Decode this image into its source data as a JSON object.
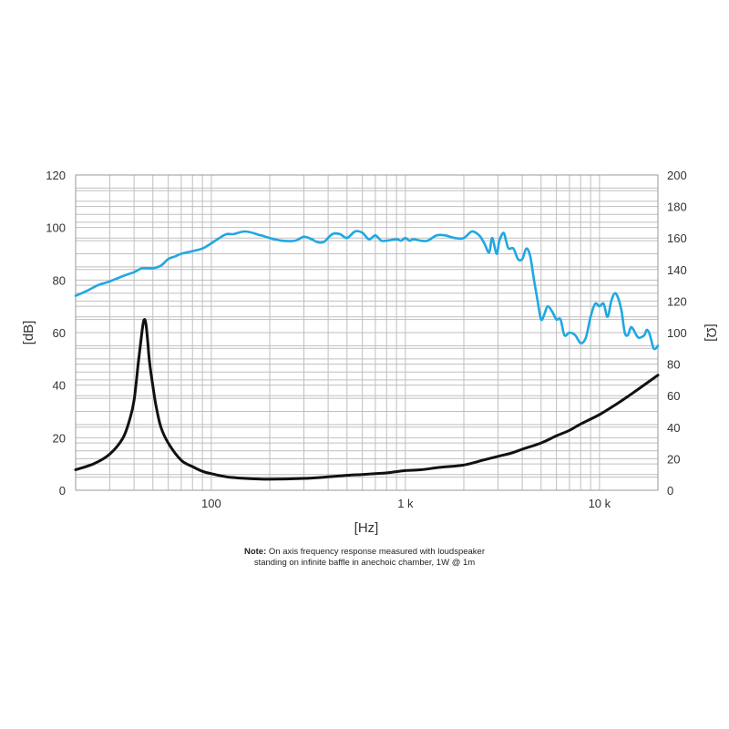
{
  "chart_data": {
    "type": "line",
    "xscale": "log",
    "xlim": [
      20,
      20000
    ],
    "xlabel": "[Hz]",
    "ylabel_left": "[dB]",
    "ylabel_right": "[Ω]",
    "ylim_left": [
      0,
      120
    ],
    "ylim_right": [
      0,
      200
    ],
    "x_ticks": [
      {
        "value": 100,
        "label": "100"
      },
      {
        "value": 1000,
        "label": "1 k"
      },
      {
        "value": 10000,
        "label": "10 k"
      }
    ],
    "y_ticks_left": [
      "0",
      "20",
      "40",
      "60",
      "80",
      "100",
      "120"
    ],
    "y_ticks_right": [
      "0",
      "20",
      "40",
      "60",
      "80",
      "100",
      "120",
      "140",
      "160",
      "180",
      "200"
    ],
    "grid": true,
    "series": [
      {
        "axis": "left",
        "color": "#1fa8e1",
        "points": [
          [
            20,
            74
          ],
          [
            23,
            76
          ],
          [
            26,
            78
          ],
          [
            30,
            79.5
          ],
          [
            35,
            81.5
          ],
          [
            40,
            83
          ],
          [
            44,
            84.5
          ],
          [
            50,
            84.5
          ],
          [
            55,
            85.5
          ],
          [
            60,
            88
          ],
          [
            65,
            89
          ],
          [
            70,
            90
          ],
          [
            80,
            91
          ],
          [
            90,
            92
          ],
          [
            100,
            94
          ],
          [
            110,
            96
          ],
          [
            120,
            97.5
          ],
          [
            130,
            97.5
          ],
          [
            150,
            98.5
          ],
          [
            180,
            97
          ],
          [
            200,
            96
          ],
          [
            230,
            95
          ],
          [
            270,
            95
          ],
          [
            300,
            96.5
          ],
          [
            330,
            95.5
          ],
          [
            350,
            94.5
          ],
          [
            380,
            94.5
          ],
          [
            420,
            97.5
          ],
          [
            460,
            97.5
          ],
          [
            500,
            96
          ],
          [
            550,
            98.5
          ],
          [
            600,
            98
          ],
          [
            650,
            95.5
          ],
          [
            700,
            97
          ],
          [
            750,
            95
          ],
          [
            800,
            95
          ],
          [
            900,
            95.5
          ],
          [
            950,
            95
          ],
          [
            1000,
            96
          ],
          [
            1050,
            95
          ],
          [
            1100,
            95.5
          ],
          [
            1200,
            95
          ],
          [
            1300,
            95
          ],
          [
            1450,
            97
          ],
          [
            1600,
            97
          ],
          [
            1800,
            96
          ],
          [
            2000,
            96
          ],
          [
            2200,
            98.5
          ],
          [
            2400,
            97
          ],
          [
            2550,
            94
          ],
          [
            2700,
            90.5
          ],
          [
            2800,
            96
          ],
          [
            2950,
            90
          ],
          [
            3050,
            95
          ],
          [
            3200,
            98
          ],
          [
            3300,
            95
          ],
          [
            3400,
            92
          ],
          [
            3600,
            92
          ],
          [
            3800,
            88
          ],
          [
            4000,
            88
          ],
          [
            4200,
            92
          ],
          [
            4400,
            89
          ],
          [
            4600,
            80
          ],
          [
            4800,
            72
          ],
          [
            5000,
            65
          ],
          [
            5200,
            67
          ],
          [
            5400,
            70
          ],
          [
            5700,
            68
          ],
          [
            6000,
            65
          ],
          [
            6300,
            65
          ],
          [
            6600,
            59
          ],
          [
            7000,
            60
          ],
          [
            7500,
            59
          ],
          [
            8000,
            56
          ],
          [
            8500,
            58
          ],
          [
            9000,
            66
          ],
          [
            9500,
            71
          ],
          [
            10000,
            70
          ],
          [
            10500,
            71
          ],
          [
            11000,
            66
          ],
          [
            11500,
            72
          ],
          [
            12000,
            75
          ],
          [
            12500,
            73
          ],
          [
            13000,
            68
          ],
          [
            13500,
            60
          ],
          [
            14000,
            59
          ],
          [
            14500,
            62
          ],
          [
            15000,
            61
          ],
          [
            15500,
            59
          ],
          [
            16000,
            58
          ],
          [
            17000,
            59
          ],
          [
            17500,
            61
          ],
          [
            18000,
            60
          ],
          [
            18500,
            57
          ],
          [
            19000,
            54
          ],
          [
            19500,
            54
          ],
          [
            20000,
            55
          ]
        ]
      },
      {
        "axis": "right",
        "color": "#111111",
        "points": [
          [
            20,
            13
          ],
          [
            25,
            17
          ],
          [
            30,
            23
          ],
          [
            35,
            33
          ],
          [
            38,
            45
          ],
          [
            40,
            57
          ],
          [
            42,
            80
          ],
          [
            44,
            101
          ],
          [
            45,
            108
          ],
          [
            46,
            106
          ],
          [
            47,
            95
          ],
          [
            48,
            82
          ],
          [
            50,
            66
          ],
          [
            52,
            53
          ],
          [
            55,
            40
          ],
          [
            60,
            30
          ],
          [
            70,
            19
          ],
          [
            80,
            15
          ],
          [
            90,
            12
          ],
          [
            100,
            10.5
          ],
          [
            120,
            8.5
          ],
          [
            150,
            7.5
          ],
          [
            200,
            7
          ],
          [
            300,
            7.5
          ],
          [
            400,
            8.5
          ],
          [
            500,
            9.5
          ],
          [
            600,
            10
          ],
          [
            700,
            10.5
          ],
          [
            800,
            11
          ],
          [
            1000,
            12.5
          ],
          [
            1200,
            13
          ],
          [
            1500,
            14.5
          ],
          [
            2000,
            16
          ],
          [
            2500,
            19
          ],
          [
            3000,
            21.5
          ],
          [
            3500,
            23.5
          ],
          [
            4000,
            26
          ],
          [
            5000,
            30
          ],
          [
            6000,
            34.5
          ],
          [
            7000,
            38
          ],
          [
            8000,
            42
          ],
          [
            10000,
            48
          ],
          [
            12000,
            54
          ],
          [
            14000,
            59.5
          ],
          [
            16000,
            64.5
          ],
          [
            18000,
            69
          ],
          [
            20000,
            73
          ]
        ]
      }
    ]
  },
  "note": {
    "bold": "Note:",
    "line1": " On axis frequency response measured with loudspeaker",
    "line2": "standing on infinite baffle in anechoic chamber, 1W @ 1m"
  }
}
